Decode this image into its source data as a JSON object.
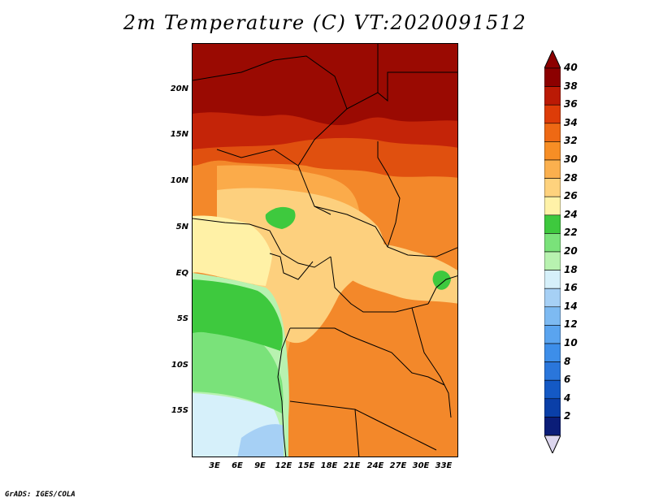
{
  "title": "2m Temperature (C) VT:2020091512",
  "footer": "GrADS: IGES/COLA",
  "map": {
    "lat_labels": [
      "20N",
      "15N",
      "10N",
      "5N",
      "EQ",
      "5S",
      "10S",
      "15S"
    ],
    "lon_labels": [
      "3E",
      "6E",
      "9E",
      "12E",
      "15E",
      "18E",
      "21E",
      "24E",
      "27E",
      "30E",
      "33E"
    ]
  },
  "colorbar": {
    "levels": [
      "2",
      "4",
      "6",
      "8",
      "10",
      "12",
      "14",
      "16",
      "18",
      "20",
      "22",
      "24",
      "26",
      "28",
      "30",
      "32",
      "34",
      "36",
      "38",
      "40"
    ],
    "colors": [
      "#0b1d78",
      "#0a3fa8",
      "#1459c5",
      "#2a76db",
      "#3d8ee9",
      "#5aa4ef",
      "#7dbaf2",
      "#a6d0f5",
      "#d6f0fa",
      "#b8f2b0",
      "#7ae27a",
      "#3ec93e",
      "#fff2a8",
      "#fed27d",
      "#fbb04e",
      "#f78e25",
      "#ee6914",
      "#dd3c08",
      "#bb1a05",
      "#8c0000"
    ],
    "under_color": "#dcd6ee",
    "over_color": "#8c0000"
  },
  "zones": [
    {
      "name": "extreme-heat",
      "color": "#9a0a02"
    },
    {
      "name": "very-hot",
      "color": "#c42408"
    },
    {
      "name": "hot",
      "color": "#e0500f"
    },
    {
      "name": "warm-orange",
      "color": "#f3882a"
    },
    {
      "name": "light-orange",
      "color": "#fbab4a"
    },
    {
      "name": "tan",
      "color": "#fdd07e"
    },
    {
      "name": "pale-yellow",
      "color": "#fff1a6"
    },
    {
      "name": "green",
      "color": "#3ec93e"
    },
    {
      "name": "light-green",
      "color": "#7ae27a"
    },
    {
      "name": "pale-green",
      "color": "#b8f2b0"
    },
    {
      "name": "very-pale-cyan",
      "color": "#d6f0fa"
    },
    {
      "name": "light-blue",
      "color": "#a6d0f5"
    }
  ]
}
